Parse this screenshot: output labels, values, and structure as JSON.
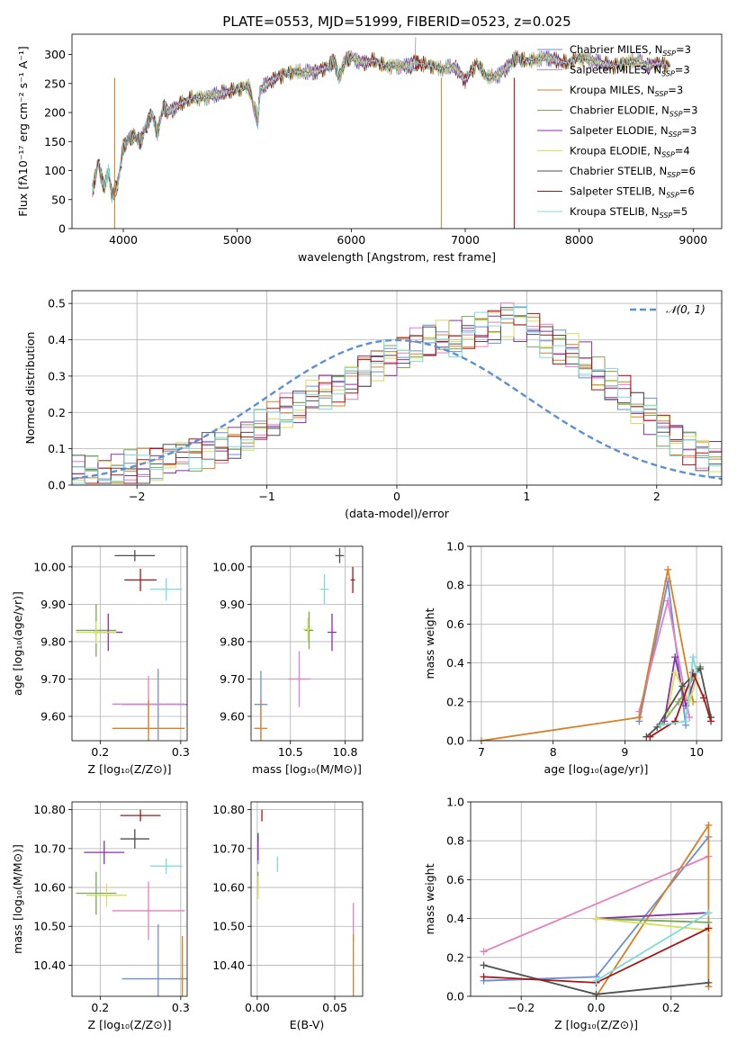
{
  "figure": {
    "title": "PLATE=0553, MJD=51999, FIBERID=0523, z=0.025"
  },
  "models": [
    {
      "name": "Chabrier MILES",
      "nssp": "3",
      "color": "#6a8fd6"
    },
    {
      "name": "Salpeter MILES",
      "nssp": "3",
      "color": "#e57fbf"
    },
    {
      "name": "Kroupa MILES",
      "nssp": "3",
      "color": "#d98023"
    },
    {
      "name": "Chabrier ELODIE",
      "nssp": "3",
      "color": "#7aa655"
    },
    {
      "name": "Salpeter ELODIE",
      "nssp": "3",
      "color": "#8a2fa8"
    },
    {
      "name": "Kroupa ELODIE",
      "nssp": "4",
      "color": "#d6e05a"
    },
    {
      "name": "Chabrier STELIB",
      "nssp": "6",
      "color": "#4f4f4f"
    },
    {
      "name": "Salpeter STELIB",
      "nssp": "6",
      "color": "#a81515"
    },
    {
      "name": "Kroupa STELIB",
      "nssp": "5",
      "color": "#7fd9d9"
    }
  ],
  "chart_data": [
    {
      "type": "line",
      "id": "spectrum",
      "xlabel": "wavelength [Angstrom, rest frame]",
      "ylabel": "Flux [fλ10⁻¹⁷ erg cm⁻² s⁻¹ A⁻¹]",
      "xlim": [
        3550,
        9250
      ],
      "ylim": [
        0,
        335
      ],
      "xticks": [
        4000,
        5000,
        6000,
        7000,
        8000,
        9000
      ],
      "yticks": [
        0,
        50,
        100,
        150,
        200,
        250,
        300
      ],
      "legend_position": "right",
      "x": [
        3730,
        3780,
        3830,
        3870,
        3900,
        3950,
        4000,
        4050,
        4100,
        4150,
        4200,
        4250,
        4300,
        4350,
        4400,
        4500,
        4600,
        4700,
        4800,
        4900,
        5000,
        5100,
        5180,
        5200,
        5300,
        5400,
        5500,
        5600,
        5700,
        5800,
        5850,
        5890,
        5950,
        6000,
        6100,
        6200,
        6300,
        6400,
        6500,
        6560,
        6600,
        6700,
        6800,
        6900,
        7000,
        7100,
        7200,
        7300,
        7400,
        7450,
        7500,
        7600,
        7700,
        7800,
        7900,
        8000,
        8100,
        8200,
        8300,
        8400,
        8500,
        8600,
        8700,
        8800
      ],
      "values": [
        65,
        115,
        70,
        100,
        55,
        75,
        140,
        155,
        160,
        150,
        175,
        200,
        165,
        210,
        200,
        215,
        225,
        225,
        230,
        235,
        240,
        245,
        185,
        240,
        255,
        265,
        270,
        270,
        270,
        280,
        290,
        260,
        290,
        295,
        285,
        290,
        280,
        280,
        280,
        285,
        285,
        280,
        275,
        280,
        255,
        285,
        260,
        265,
        285,
        295,
        290,
        290,
        295,
        290,
        285,
        295,
        290,
        285,
        280,
        285,
        290,
        280,
        285,
        280
      ]
    },
    {
      "type": "histogram",
      "id": "residuals",
      "xlabel": "(data-model)/error",
      "ylabel": "Normed distribution",
      "xlim": [
        -2.5,
        2.5
      ],
      "ylim": [
        0,
        0.535
      ],
      "xticks": [
        -2,
        -1,
        0,
        1,
        2
      ],
      "yticks": [
        0.0,
        0.1,
        0.2,
        0.3,
        0.4,
        0.5
      ],
      "reference_curve": {
        "name": "𝒩(0, 1)",
        "color": "#5b8fd6",
        "mean": 0,
        "sigma": 1
      },
      "legend_position": "top-right",
      "bin_width": 0.1,
      "bins_start": -2.5,
      "base_values": [
        0.03,
        0.032,
        0.035,
        0.04,
        0.045,
        0.05,
        0.06,
        0.07,
        0.08,
        0.09,
        0.1,
        0.11,
        0.12,
        0.14,
        0.16,
        0.175,
        0.2,
        0.21,
        0.24,
        0.26,
        0.27,
        0.29,
        0.32,
        0.34,
        0.35,
        0.36,
        0.38,
        0.39,
        0.4,
        0.4,
        0.42,
        0.43,
        0.44,
        0.46,
        0.45,
        0.43,
        0.4,
        0.38,
        0.37,
        0.34,
        0.3,
        0.27,
        0.25,
        0.21,
        0.19,
        0.16,
        0.13,
        0.11,
        0.09,
        0.075,
        0.06
      ]
    },
    {
      "type": "scatter",
      "id": "age-vs-Z",
      "xlabel": "Z [log₁₀(Z/Z⊙)]",
      "ylabel": "age  [log₁₀(age/yr)]",
      "xlim": [
        0.165,
        0.308
      ],
      "ylim": [
        9.535,
        10.055
      ],
      "xticks": [
        0.2,
        0.3
      ],
      "yticks": [
        9.6,
        9.7,
        9.8,
        9.9,
        10.0
      ],
      "points": [
        {
          "x": 0.272,
          "y": 9.632,
          "ex": 0.045,
          "ey": 0.095
        },
        {
          "x": 0.26,
          "y": 9.633,
          "ex": 0.045,
          "ey": 0.075
        },
        {
          "x": 0.26,
          "y": 9.568,
          "ex": 0.045,
          "ey": 0.075
        },
        {
          "x": 0.195,
          "y": 9.83,
          "ex": 0.025,
          "ey": 0.07
        },
        {
          "x": 0.21,
          "y": 9.825,
          "ex": 0.018,
          "ey": 0.05
        },
        {
          "x": 0.195,
          "y": 9.825,
          "ex": 0.025,
          "ey": 0.03
        },
        {
          "x": 0.243,
          "y": 10.03,
          "ex": 0.025,
          "ey": 0.015
        },
        {
          "x": 0.25,
          "y": 9.965,
          "ex": 0.02,
          "ey": 0.03
        },
        {
          "x": 0.282,
          "y": 9.94,
          "ex": 0.02,
          "ey": 0.03
        }
      ]
    },
    {
      "type": "scatter",
      "id": "age-vs-mass",
      "xlabel": "mass [log₁₀(M/M⊙)]",
      "ylabel": "",
      "xlim": [
        10.32,
        10.83
      ],
      "ylim": [
        9.535,
        10.055
      ],
      "xticks": [
        10.5,
        10.75
      ],
      "yticks": [
        9.6,
        9.7,
        9.8,
        9.9,
        10.0
      ],
      "points": [
        {
          "x": 10.365,
          "y": 9.632,
          "ex": 0.03,
          "ey": 0.09
        },
        {
          "x": 10.54,
          "y": 9.7,
          "ex": 0.05,
          "ey": 0.075
        },
        {
          "x": 10.365,
          "y": 9.568,
          "ex": 0.03,
          "ey": 0.075
        },
        {
          "x": 10.585,
          "y": 9.83,
          "ex": 0.02,
          "ey": 0.05
        },
        {
          "x": 10.69,
          "y": 9.825,
          "ex": 0.02,
          "ey": 0.05
        },
        {
          "x": 10.58,
          "y": 9.833,
          "ex": 0.02,
          "ey": 0.03
        },
        {
          "x": 10.725,
          "y": 10.03,
          "ex": 0.02,
          "ey": 0.02
        },
        {
          "x": 10.785,
          "y": 9.965,
          "ex": 0.01,
          "ey": 0.035
        },
        {
          "x": 10.655,
          "y": 9.94,
          "ex": 0.02,
          "ey": 0.04
        }
      ]
    },
    {
      "type": "line",
      "id": "weight-vs-age",
      "xlabel": "age  [log₁₀(age/yr)]",
      "ylabel": "mass weight",
      "xlim": [
        6.85,
        10.35
      ],
      "ylim": [
        0,
        1.0
      ],
      "xticks": [
        7,
        8,
        9,
        10
      ],
      "yticks": [
        0.0,
        0.2,
        0.4,
        0.6,
        0.8,
        1.0
      ],
      "series": [
        {
          "x": [
            9.2,
            9.6,
            9.85
          ],
          "values": [
            0.1,
            0.82,
            0.08
          ]
        },
        {
          "x": [
            9.2,
            9.6,
            9.9
          ],
          "values": [
            0.15,
            0.72,
            0.12
          ]
        },
        {
          "x": [
            7.0,
            9.2,
            9.6,
            9.95
          ],
          "values": [
            0.0,
            0.12,
            0.88,
            0.2
          ]
        },
        {
          "x": [
            9.5,
            9.75,
            10.05
          ],
          "values": [
            0.08,
            0.2,
            0.38
          ]
        },
        {
          "x": [
            9.55,
            9.7,
            9.85,
            10.0
          ],
          "values": [
            0.1,
            0.43,
            0.18,
            0.35
          ]
        },
        {
          "x": [
            9.6,
            9.7,
            9.9,
            10.0
          ],
          "values": [
            0.15,
            0.35,
            0.2,
            0.32
          ]
        },
        {
          "x": [
            9.3,
            9.45,
            9.8,
            10.05,
            10.2
          ],
          "values": [
            0.02,
            0.07,
            0.28,
            0.37,
            0.12
          ]
        },
        {
          "x": [
            9.35,
            9.7,
            9.95,
            10.1,
            10.2
          ],
          "values": [
            0.02,
            0.1,
            0.35,
            0.22,
            0.1
          ]
        },
        {
          "x": [
            9.5,
            9.85,
            9.95,
            10.0
          ],
          "values": [
            0.08,
            0.1,
            0.43,
            0.35
          ]
        }
      ]
    },
    {
      "type": "scatter",
      "id": "mass-vs-Z",
      "xlabel": "Z [log₁₀(Z/Z⊙)]",
      "ylabel": "mass [log₁₀(M/M⊙)]",
      "xlim": [
        0.165,
        0.308
      ],
      "ylim": [
        10.32,
        10.82
      ],
      "xticks": [
        0.2,
        0.3
      ],
      "yticks": [
        10.4,
        10.5,
        10.6,
        10.7,
        10.8
      ],
      "points": [
        {
          "x": 0.272,
          "y": 10.365,
          "ex": 0.045,
          "ey": 0.14
        },
        {
          "x": 0.26,
          "y": 10.54,
          "ex": 0.045,
          "ey": 0.075
        },
        {
          "x": 0.302,
          "y": 10.365,
          "ex": 0.002,
          "ey": 0.11
        },
        {
          "x": 0.195,
          "y": 10.585,
          "ex": 0.025,
          "ey": 0.055
        },
        {
          "x": 0.205,
          "y": 10.69,
          "ex": 0.025,
          "ey": 0.03
        },
        {
          "x": 0.208,
          "y": 10.58,
          "ex": 0.025,
          "ey": 0.03
        },
        {
          "x": 0.243,
          "y": 10.725,
          "ex": 0.018,
          "ey": 0.025
        },
        {
          "x": 0.25,
          "y": 10.785,
          "ex": 0.025,
          "ey": 0.015
        },
        {
          "x": 0.282,
          "y": 10.655,
          "ex": 0.02,
          "ey": 0.02
        }
      ]
    },
    {
      "type": "scatter",
      "id": "mass-vs-ebv",
      "xlabel": "E(B-V)",
      "ylabel": "",
      "xlim": [
        -0.004,
        0.068
      ],
      "ylim": [
        10.32,
        10.82
      ],
      "xticks": [
        0.0,
        0.05
      ],
      "yticks": [
        10.4,
        10.5,
        10.6,
        10.7,
        10.8
      ],
      "points": [
        {
          "x": 0.0005,
          "y": 10.7,
          "ey": 0.04
        },
        {
          "x": 0.062,
          "y": 10.51,
          "ey": 0.05
        },
        {
          "x": 0.062,
          "y": 10.4,
          "ey": 0.08
        },
        {
          "x": 0.0005,
          "y": 10.61,
          "ey": 0.03
        },
        {
          "x": 0.0005,
          "y": 10.7,
          "ey": 0.03
        },
        {
          "x": 0.0005,
          "y": 10.6,
          "ey": 0.03
        },
        {
          "x": 0.0005,
          "y": 10.73,
          "ey": 0.01
        },
        {
          "x": 0.003,
          "y": 10.785,
          "ey": 0.015
        },
        {
          "x": 0.013,
          "y": 10.66,
          "ey": 0.02
        }
      ]
    },
    {
      "type": "line",
      "id": "weight-vs-Z",
      "xlabel": "Z [log₁₀(Z/Z⊙)]",
      "ylabel": "mass weight",
      "xlim": [
        -0.335,
        0.335
      ],
      "ylim": [
        0,
        1.0
      ],
      "xticks": [
        -0.2,
        0.0,
        0.2
      ],
      "yticks": [
        0.0,
        0.2,
        0.4,
        0.6,
        0.8,
        1.0
      ],
      "series": [
        {
          "x": [
            -0.3,
            0.0,
            0.3
          ],
          "values": [
            0.08,
            0.1,
            0.82
          ]
        },
        {
          "x": [
            -0.3,
            0.3
          ],
          "values": [
            0.23,
            0.72
          ]
        },
        {
          "x": [
            0.0,
            0.3,
            0.3
          ],
          "values": [
            0.0,
            0.88,
            0.05
          ]
        },
        {
          "x": [
            0.0,
            0.3
          ],
          "values": [
            0.4,
            0.38
          ]
        },
        {
          "x": [
            0.0,
            0.3
          ],
          "values": [
            0.4,
            0.43
          ]
        },
        {
          "x": [
            0.0,
            0.3
          ],
          "values": [
            0.4,
            0.34
          ]
        },
        {
          "x": [
            -0.3,
            0.0,
            0.3
          ],
          "values": [
            0.16,
            0.01,
            0.07
          ]
        },
        {
          "x": [
            -0.3,
            0.0,
            0.3
          ],
          "values": [
            0.1,
            0.07,
            0.35
          ]
        },
        {
          "x": [
            0.0,
            0.3
          ],
          "values": [
            0.08,
            0.43
          ]
        }
      ]
    }
  ]
}
